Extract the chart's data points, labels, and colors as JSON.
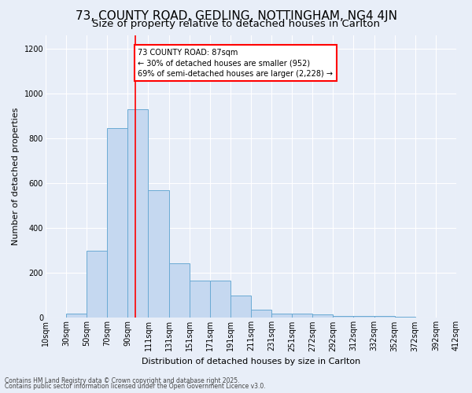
{
  "title1": "73, COUNTY ROAD, GEDLING, NOTTINGHAM, NG4 4JN",
  "title2": "Size of property relative to detached houses in Carlton",
  "xlabel": "Distribution of detached houses by size in Carlton",
  "ylabel": "Number of detached properties",
  "bins": [
    "10sqm",
    "30sqm",
    "50sqm",
    "70sqm",
    "90sqm",
    "111sqm",
    "131sqm",
    "151sqm",
    "171sqm",
    "191sqm",
    "211sqm",
    "231sqm",
    "251sqm",
    "272sqm",
    "292sqm",
    "312sqm",
    "332sqm",
    "352sqm",
    "372sqm",
    "392sqm",
    "412sqm"
  ],
  "values": [
    0,
    20,
    300,
    845,
    930,
    570,
    245,
    165,
    165,
    100,
    35,
    20,
    20,
    15,
    8,
    10,
    10,
    5,
    0,
    0
  ],
  "bar_color": "#c5d8f0",
  "bar_edge_color": "#6aaad4",
  "vline_x": 3.85,
  "vline_color": "red",
  "annotation_text": "73 COUNTY ROAD: 87sqm\n← 30% of detached houses are smaller (952)\n69% of semi-detached houses are larger (2,228) →",
  "annotation_box_color": "white",
  "annotation_box_edge": "red",
  "ylim": [
    0,
    1260
  ],
  "yticks": [
    0,
    200,
    400,
    600,
    800,
    1000,
    1200
  ],
  "footer1": "Contains HM Land Registry data © Crown copyright and database right 2025.",
  "footer2": "Contains public sector information licensed under the Open Government Licence v3.0.",
  "bg_color": "#e8eef8",
  "plot_bg_color": "#e8eef8",
  "title1_fontsize": 11,
  "title2_fontsize": 9.5,
  "axis_fontsize": 8,
  "tick_fontsize": 7,
  "ylabel_fontsize": 8
}
